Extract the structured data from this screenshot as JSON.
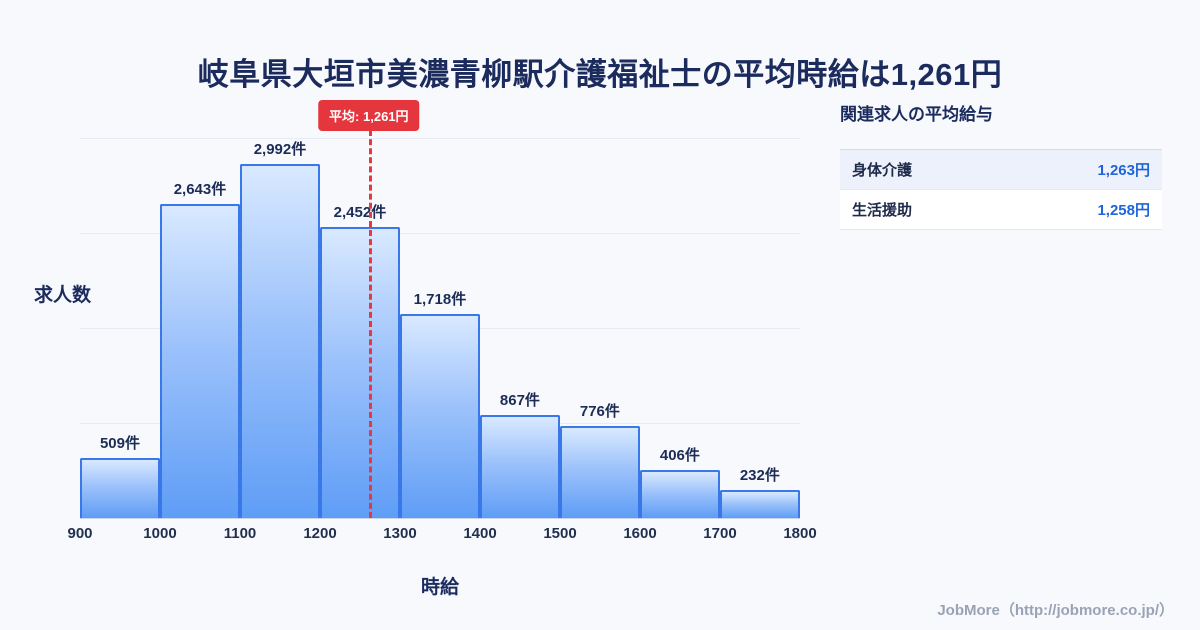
{
  "page": {
    "title": "岐阜県大垣市美濃青柳駅介護福祉士の平均時給は1,261円"
  },
  "chart_data": {
    "type": "bar",
    "title": "岐阜県大垣市美濃青柳駅介護福祉士の平均時給は1,261円",
    "xlabel": "時給",
    "ylabel": "求人数",
    "x_bin_edges": [
      900,
      1000,
      1100,
      1200,
      1300,
      1400,
      1500,
      1600,
      1700,
      1800
    ],
    "categories": [
      "900-1000",
      "1000-1100",
      "1100-1200",
      "1200-1300",
      "1300-1400",
      "1400-1500",
      "1500-1600",
      "1600-1700",
      "1700-1800"
    ],
    "values": [
      509,
      2643,
      2992,
      2452,
      1718,
      867,
      776,
      406,
      232
    ],
    "bar_labels": [
      "509件",
      "2,643件",
      "2,992件",
      "2,452件",
      "1,718件",
      "867件",
      "776件",
      "406件",
      "232件"
    ],
    "average": {
      "value": 1261,
      "label": "平均: 1,261円"
    },
    "xlim": [
      900,
      1800
    ],
    "ylim": [
      0,
      3200
    ],
    "grid": true,
    "legend": "none",
    "colors": {
      "bar_top": "#d9e9ff",
      "bar_bottom": "#5f9df6",
      "bar_border": "#3878e8",
      "average_line": "#e8383f",
      "text": "#1b2b5e"
    }
  },
  "side_panel": {
    "heading": "関連求人の平均給与",
    "rows": [
      {
        "label": "身体介護",
        "value": "1,263円"
      },
      {
        "label": "生活援助",
        "value": "1,258円"
      }
    ]
  },
  "footer": {
    "text": "JobMore（http://jobmore.co.jp/）"
  }
}
